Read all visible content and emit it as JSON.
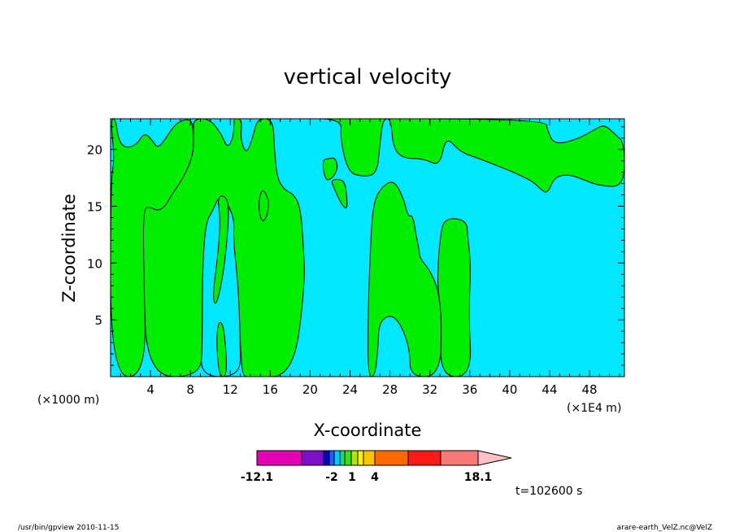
{
  "chart_data": {
    "type": "heatmap",
    "title": "vertical velocity",
    "xlabel": "X-coordinate",
    "ylabel": "Z-coordinate",
    "x_scale_note": "(×1000 m)",
    "x_unit_note": "(×1E4 m)",
    "xlim": [
      0,
      51.5
    ],
    "ylim": [
      0,
      22.7
    ],
    "x_ticks": [
      4,
      8,
      12,
      16,
      20,
      24,
      28,
      32,
      36,
      40,
      44,
      48
    ],
    "y_ticks": [
      5,
      10,
      15,
      20
    ],
    "colors": {
      "positive_green": "#00ee00",
      "negative_cyan": "#00e8ff"
    },
    "regions": [
      {
        "name": "green-region-1",
        "value_sign": "positive",
        "points": [
          [
            0,
            22.7
          ],
          [
            0.5,
            22.7
          ],
          [
            0.8,
            20.8
          ],
          [
            1.5,
            20.1
          ],
          [
            2.6,
            20.4
          ],
          [
            3.4,
            21.5
          ],
          [
            4.2,
            20.8
          ],
          [
            4.7,
            20.1
          ],
          [
            5.4,
            20.8
          ],
          [
            6.1,
            21.8
          ],
          [
            6.9,
            22.5
          ],
          [
            8.1,
            22.7
          ],
          [
            8.3,
            21.5
          ],
          [
            8.3,
            19.5
          ],
          [
            7.3,
            17.5
          ],
          [
            6.2,
            16.1
          ],
          [
            5.4,
            14.9
          ],
          [
            4.7,
            14.6
          ],
          [
            4.0,
            14.9
          ],
          [
            3.3,
            14.9
          ],
          [
            3.3,
            10
          ],
          [
            3.6,
            0
          ],
          [
            0,
            0
          ],
          [
            0,
            17.4
          ],
          [
            0.4,
            19
          ]
        ]
      },
      {
        "name": "green-region-2",
        "value_sign": "positive",
        "points": [
          [
            8.3,
            22.7
          ],
          [
            10,
            22.7
          ],
          [
            11.2,
            21.2
          ],
          [
            11.7,
            20.1
          ],
          [
            12.3,
            21
          ],
          [
            12.4,
            22.7
          ],
          [
            12.3,
            22.7
          ],
          [
            13.2,
            22.7
          ],
          [
            13.0,
            21.0
          ],
          [
            13.6,
            19.5
          ],
          [
            14.3,
            21.2
          ],
          [
            14.7,
            22.7
          ],
          [
            16.3,
            22.7
          ],
          [
            16.4,
            20.1
          ],
          [
            16.7,
            17.4
          ],
          [
            17.5,
            16.4
          ],
          [
            18.3,
            16.1
          ],
          [
            19.0,
            15
          ],
          [
            19.3,
            12
          ],
          [
            19.5,
            8
          ],
          [
            18.3,
            0
          ],
          [
            14.0,
            0
          ],
          [
            13.2,
            0
          ],
          [
            13.0,
            3
          ],
          [
            12.8,
            8
          ],
          [
            12.3,
            12
          ],
          [
            12.4,
            14
          ],
          [
            11.5,
            15.5
          ],
          [
            10.8,
            15.8
          ],
          [
            10.3,
            14.7
          ],
          [
            9.5,
            13.5
          ],
          [
            9.2,
            9.0
          ],
          [
            9.2,
            3.0
          ],
          [
            9.0,
            0
          ],
          [
            3.6,
            0
          ],
          [
            3.3,
            10
          ],
          [
            3.3,
            14.9
          ],
          [
            4.0,
            14.9
          ],
          [
            4.7,
            14.6
          ],
          [
            5.4,
            14.9
          ],
          [
            6.2,
            16.1
          ],
          [
            7.3,
            17.5
          ],
          [
            8.3,
            19.5
          ],
          [
            8.3,
            21.5
          ]
        ]
      },
      {
        "name": "green-region-3",
        "value_sign": "positive",
        "points": [
          [
            18.5,
            22.7
          ],
          [
            23.2,
            22.7
          ],
          [
            23.0,
            21.0
          ],
          [
            23.8,
            18.0
          ],
          [
            25.2,
            17.6
          ],
          [
            26.7,
            17.8
          ],
          [
            27.0,
            20.5
          ],
          [
            27.3,
            22.7
          ],
          [
            28.1,
            22.7
          ],
          [
            28.3,
            20.2
          ],
          [
            29.3,
            19.2
          ],
          [
            31.4,
            19.2
          ],
          [
            33.0,
            18.5
          ],
          [
            33.6,
            21.2
          ],
          [
            35.0,
            19.8
          ],
          [
            36.6,
            19.3
          ],
          [
            38.1,
            18.8
          ],
          [
            39.8,
            18.2
          ],
          [
            40.6,
            17.9
          ],
          [
            42.3,
            17.2
          ],
          [
            43.1,
            16.5
          ],
          [
            43.8,
            16.1
          ],
          [
            44.5,
            17.6
          ],
          [
            46.0,
            17.8
          ],
          [
            47.5,
            17.3
          ],
          [
            49.0,
            16.8
          ],
          [
            51.5,
            16.7
          ],
          [
            51.5,
            20.6
          ],
          [
            50.6,
            21.3
          ],
          [
            49.5,
            22.2
          ],
          [
            48.6,
            21.8
          ],
          [
            46.8,
            20.9
          ],
          [
            44.5,
            20.4
          ],
          [
            43.8,
            21.6
          ],
          [
            43.6,
            22.7
          ],
          [
            18.5,
            22.7
          ]
        ]
      },
      {
        "name": "green-region-4",
        "value_sign": "positive",
        "points": [
          [
            25.8,
            0
          ],
          [
            25.8,
            5.2
          ],
          [
            26.0,
            10.5
          ],
          [
            26.3,
            15.5
          ],
          [
            27.5,
            17.0
          ],
          [
            28.5,
            17.2
          ],
          [
            29.4,
            15.6
          ],
          [
            29.8,
            14.1
          ],
          [
            30.3,
            14.2
          ],
          [
            30.6,
            12.5
          ],
          [
            30.9,
            11.3
          ],
          [
            31.0,
            10.4
          ],
          [
            31.9,
            9.5
          ],
          [
            32.8,
            7.8
          ],
          [
            33.2,
            5.0
          ],
          [
            33.0,
            0
          ],
          [
            30.0,
            0
          ],
          [
            30.0,
            2.4
          ],
          [
            29.1,
            4.6
          ],
          [
            28.1,
            5.5
          ],
          [
            26.9,
            4.8
          ],
          [
            26.8,
            2.5
          ],
          [
            26.5,
            0
          ]
        ]
      },
      {
        "name": "green-region-5",
        "value_sign": "positive",
        "points": [
          [
            36.2,
            0
          ],
          [
            35.9,
            5.2
          ],
          [
            36.1,
            10
          ],
          [
            35.8,
            12.2
          ],
          [
            35.7,
            13.8
          ],
          [
            33.4,
            14.0
          ],
          [
            33.0,
            12.0
          ],
          [
            32.8,
            9.5
          ],
          [
            32.8,
            7.8
          ],
          [
            33.2,
            5.0
          ],
          [
            33.0,
            0
          ]
        ]
      }
    ],
    "negative_islands": [
      {
        "name": "cyan-island-1",
        "points": [
          [
            8.3,
            22.7
          ],
          [
            8.3,
            19.5
          ],
          [
            8.3,
            21.5
          ]
        ]
      },
      {
        "name": "cyan-island-2",
        "points": [
          [
            13.0,
            0
          ],
          [
            13.0,
            3
          ],
          [
            12.8,
            8
          ],
          [
            12.3,
            12
          ],
          [
            12.4,
            14
          ],
          [
            11.5,
            15.5
          ],
          [
            10.8,
            15.8
          ],
          [
            10.3,
            14.7
          ],
          [
            9.5,
            13.5
          ],
          [
            9.2,
            9.0
          ],
          [
            9.2,
            3.0
          ],
          [
            9.0,
            0
          ]
        ]
      }
    ],
    "green_islands": [
      {
        "name": "green-island-1",
        "points": [
          [
            10.7,
            15.9
          ],
          [
            11.0,
            14.0
          ],
          [
            10.8,
            11.0
          ],
          [
            10.2,
            7.0
          ],
          [
            10.6,
            6.1
          ],
          [
            11.4,
            9.5
          ],
          [
            11.9,
            14.5
          ],
          [
            11.6,
            15.9
          ]
        ]
      },
      {
        "name": "green-island-2",
        "points": [
          [
            10.9,
            0
          ],
          [
            10.6,
            3.0
          ],
          [
            10.8,
            4.9
          ],
          [
            11.3,
            4.6
          ],
          [
            11.6,
            2.0
          ],
          [
            11.6,
            0
          ]
        ]
      },
      {
        "name": "green-island-3",
        "points": [
          [
            15.1,
            16.4
          ],
          [
            14.8,
            15.2
          ],
          [
            15.1,
            13.6
          ],
          [
            15.6,
            13.9
          ],
          [
            15.9,
            15.3
          ],
          [
            15.5,
            16.3
          ]
        ]
      },
      {
        "name": "green-island-4",
        "points": [
          [
            21.2,
            19.1
          ],
          [
            21.5,
            17.2
          ],
          [
            22.3,
            17.5
          ],
          [
            22.8,
            18.4
          ],
          [
            22.5,
            19.3
          ],
          [
            21.9,
            19.2
          ]
        ]
      },
      {
        "name": "green-island-5",
        "points": [
          [
            22.4,
            16.6
          ],
          [
            22.1,
            17.3
          ],
          [
            22.9,
            17.4
          ],
          [
            23.5,
            17.1
          ],
          [
            23.7,
            15.7
          ],
          [
            23.7,
            14.7
          ],
          [
            23.2,
            15.1
          ],
          [
            22.7,
            16.0
          ]
        ]
      }
    ],
    "colorbar": {
      "colors": [
        "#e600b4",
        "#7b10c8",
        "#0000c8",
        "#1e5fff",
        "#00c8ff",
        "#00e08c",
        "#40e000",
        "#b0e600",
        "#fff000",
        "#ffc400",
        "#ff6a00",
        "#ff1a1a",
        "#f87878",
        "#ffc0c8"
      ],
      "labels": [
        {
          "text": "-12.1",
          "pos": "left"
        },
        {
          "text": "-2",
          "pos": "mid1"
        },
        {
          "text": "1",
          "pos": "mid2"
        },
        {
          "text": "4",
          "pos": "mid3"
        },
        {
          "text": "18.1",
          "pos": "right"
        }
      ]
    }
  },
  "time_label": "t=102600 s",
  "footer_left": "/usr/bin/gpview  2010-11-15",
  "footer_right": "arare-earth_VelZ.nc@VelZ"
}
